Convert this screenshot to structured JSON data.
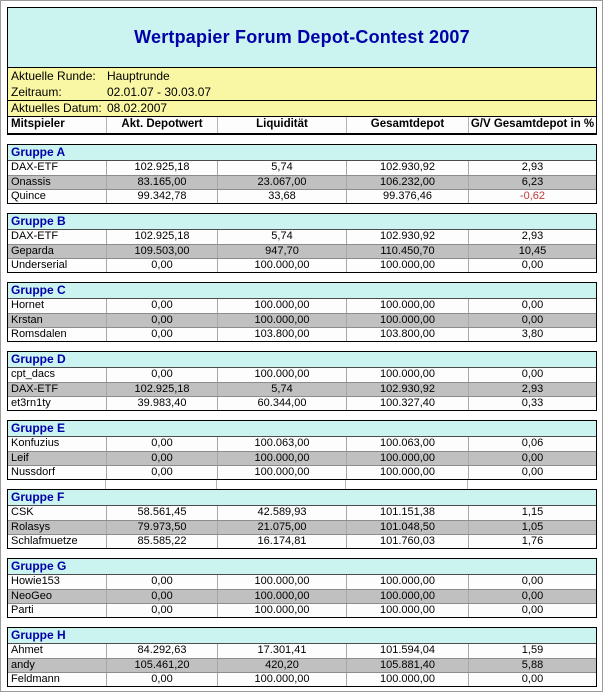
{
  "title": "Wertpapier Forum Depot-Contest 2007",
  "info": {
    "round_label": "Aktuelle Runde:",
    "round_value": "Hauptrunde",
    "period_label": "Zeitraum:",
    "period_value": "02.01.07 - 30.03.07",
    "date_label": "Aktuelles Datum:",
    "date_value": "08.02.2007"
  },
  "columns": [
    "Mitspieler",
    "Akt. Depotwert",
    "Liquidität",
    "Gesamtdepot",
    "G/V Gesamtdepot in %"
  ],
  "colors": {
    "header_bg": "#CBF3F0",
    "info_bg": "#FAF7A4",
    "shaded_row": "#C0C0C0",
    "accent_blue": "#0000A8",
    "negative_text": "#C03A3A"
  },
  "groups": [
    {
      "name": "Gruppe A",
      "rows": [
        {
          "player": "DAX-ETF",
          "akt_depotwert": "102.925,18",
          "liquiditaet": "5,74",
          "gesamtdepot": "102.930,92",
          "gv_prozent": "2,93"
        },
        {
          "player": "Onassis",
          "akt_depotwert": "83.165,00",
          "liquiditaet": "23.067,00",
          "gesamtdepot": "106.232,00",
          "gv_prozent": "6,23"
        },
        {
          "player": "Quince",
          "akt_depotwert": "99.342,78",
          "liquiditaet": "33,68",
          "gesamtdepot": "99.376,46",
          "gv_prozent": "-0,62"
        }
      ]
    },
    {
      "name": "Gruppe B",
      "rows": [
        {
          "player": "DAX-ETF",
          "akt_depotwert": "102.925,18",
          "liquiditaet": "5,74",
          "gesamtdepot": "102.930,92",
          "gv_prozent": "2,93"
        },
        {
          "player": "Geparda",
          "akt_depotwert": "109.503,00",
          "liquiditaet": "947,70",
          "gesamtdepot": "110.450,70",
          "gv_prozent": "10,45"
        },
        {
          "player": "Underserial",
          "akt_depotwert": "0,00",
          "liquiditaet": "100.000,00",
          "gesamtdepot": "100.000,00",
          "gv_prozent": "0,00"
        }
      ]
    },
    {
      "name": "Gruppe C",
      "rows": [
        {
          "player": "Hornet",
          "akt_depotwert": "0,00",
          "liquiditaet": "100.000,00",
          "gesamtdepot": "100.000,00",
          "gv_prozent": "0,00"
        },
        {
          "player": "Krstan",
          "akt_depotwert": "0,00",
          "liquiditaet": "100.000,00",
          "gesamtdepot": "100.000,00",
          "gv_prozent": "0,00"
        },
        {
          "player": "Romsdalen",
          "akt_depotwert": "0,00",
          "liquiditaet": "103.800,00",
          "gesamtdepot": "103.800,00",
          "gv_prozent": "3,80"
        }
      ]
    },
    {
      "name": "Gruppe D",
      "rows": [
        {
          "player": "cpt_dacs",
          "akt_depotwert": "0,00",
          "liquiditaet": "100.000,00",
          "gesamtdepot": "100.000,00",
          "gv_prozent": "0,00"
        },
        {
          "player": "DAX-ETF",
          "akt_depotwert": "102.925,18",
          "liquiditaet": "5,74",
          "gesamtdepot": "102.930,92",
          "gv_prozent": "2,93"
        },
        {
          "player": "et3rn1ty",
          "akt_depotwert": "39.983,40",
          "liquiditaet": "60.344,00",
          "gesamtdepot": "100.327,40",
          "gv_prozent": "0,33"
        }
      ]
    },
    {
      "name": "Gruppe E",
      "rows": [
        {
          "player": "Konfuzius",
          "akt_depotwert": "0,00",
          "liquiditaet": "100.063,00",
          "gesamtdepot": "100.063,00",
          "gv_prozent": "0,06"
        },
        {
          "player": "Leif",
          "akt_depotwert": "0,00",
          "liquiditaet": "100.000,00",
          "gesamtdepot": "100.000,00",
          "gv_prozent": "0,00"
        },
        {
          "player": "Nussdorf",
          "akt_depotwert": "0,00",
          "liquiditaet": "100.000,00",
          "gesamtdepot": "100.000,00",
          "gv_prozent": "0,00"
        }
      ]
    },
    {
      "name": "Gruppe F",
      "ruled_gap_before": true,
      "rows": [
        {
          "player": "CSK",
          "akt_depotwert": "58.561,45",
          "liquiditaet": "42.589,93",
          "gesamtdepot": "101.151,38",
          "gv_prozent": "1,15"
        },
        {
          "player": "Rolasys",
          "akt_depotwert": "79.973,50",
          "liquiditaet": "21.075,00",
          "gesamtdepot": "101.048,50",
          "gv_prozent": "1,05"
        },
        {
          "player": "Schlafmuetze",
          "akt_depotwert": "85.585,22",
          "liquiditaet": "16.174,81",
          "gesamtdepot": "101.760,03",
          "gv_prozent": "1,76"
        }
      ]
    },
    {
      "name": "Gruppe G",
      "rows": [
        {
          "player": "Howie153",
          "akt_depotwert": "0,00",
          "liquiditaet": "100.000,00",
          "gesamtdepot": "100.000,00",
          "gv_prozent": "0,00"
        },
        {
          "player": "NeoGeo",
          "akt_depotwert": "0,00",
          "liquiditaet": "100.000,00",
          "gesamtdepot": "100.000,00",
          "gv_prozent": "0,00"
        },
        {
          "player": "Parti",
          "akt_depotwert": "0,00",
          "liquiditaet": "100.000,00",
          "gesamtdepot": "100.000,00",
          "gv_prozent": "0,00"
        }
      ]
    },
    {
      "name": "Gruppe H",
      "rows": [
        {
          "player": "Ahmet",
          "akt_depotwert": "84.292,63",
          "liquiditaet": "17.301,41",
          "gesamtdepot": "101.594,04",
          "gv_prozent": "1,59"
        },
        {
          "player": "andy",
          "akt_depotwert": "105.461,20",
          "liquiditaet": "420,20",
          "gesamtdepot": "105.881,40",
          "gv_prozent": "5,88"
        },
        {
          "player": "Feldmann",
          "akt_depotwert": "0,00",
          "liquiditaet": "100.000,00",
          "gesamtdepot": "100.000,00",
          "gv_prozent": "0,00"
        }
      ]
    }
  ]
}
